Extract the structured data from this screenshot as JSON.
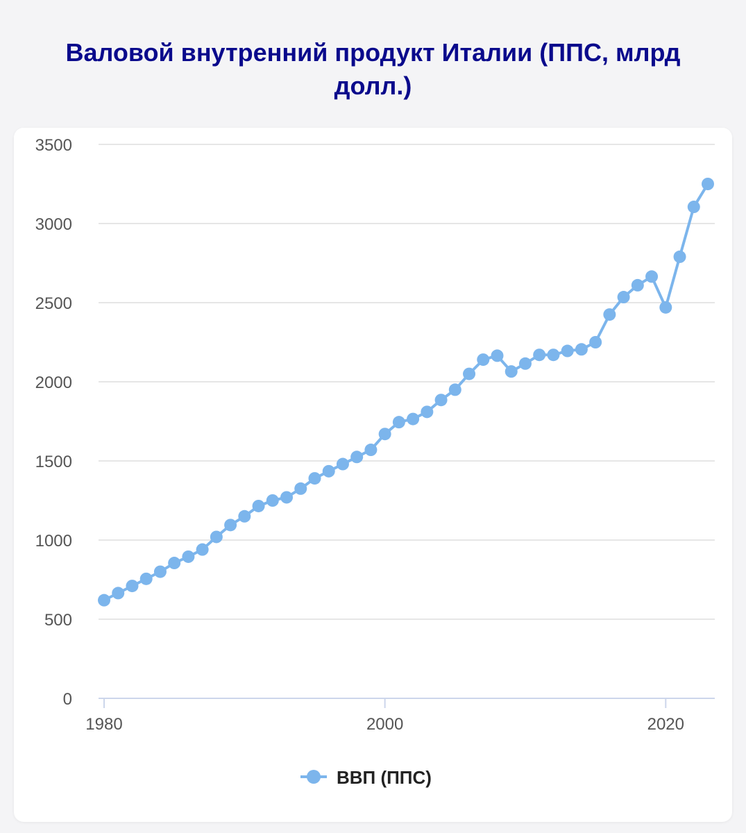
{
  "page": {
    "title_line1": "Валовой внутренний продукт Италии (ППС, млрд",
    "title_line2": "долл.)"
  },
  "colors": {
    "title": "#0a0a8c",
    "series": "#7cb5ec",
    "grid": "#e6e6e6",
    "axis": "#ccd6eb",
    "background": "#f4f4f6",
    "card": "#ffffff"
  },
  "chart_data": {
    "type": "line",
    "title": "Валовой внутренний продукт Италии (ППС, млрд долл.)",
    "xlabel": "",
    "ylabel": "",
    "ylim": [
      0,
      3500
    ],
    "xlim": [
      1980,
      2023
    ],
    "yticks": [
      "0",
      "500",
      "1000",
      "1500",
      "2000",
      "2500",
      "3000",
      "3500"
    ],
    "xticks": [
      "1980",
      "2000",
      "2020"
    ],
    "grid": true,
    "legend_position": "bottom-center",
    "series": [
      {
        "name": "ВВП (ППС)",
        "color": "#7cb5ec",
        "x": [
          1980,
          1981,
          1982,
          1983,
          1984,
          1985,
          1986,
          1987,
          1988,
          1989,
          1990,
          1991,
          1992,
          1993,
          1994,
          1995,
          1996,
          1997,
          1998,
          1999,
          2000,
          2001,
          2002,
          2003,
          2004,
          2005,
          2006,
          2007,
          2008,
          2009,
          2010,
          2011,
          2012,
          2013,
          2014,
          2015,
          2016,
          2017,
          2018,
          2019,
          2020,
          2021,
          2022,
          2023
        ],
        "values": [
          620,
          665,
          710,
          755,
          800,
          855,
          895,
          940,
          1020,
          1095,
          1150,
          1215,
          1250,
          1270,
          1325,
          1390,
          1435,
          1480,
          1525,
          1570,
          1670,
          1745,
          1765,
          1810,
          1885,
          1950,
          2050,
          2140,
          2165,
          2065,
          2115,
          2170,
          2170,
          2195,
          2205,
          2250,
          2425,
          2535,
          2610,
          2665,
          2470,
          2790,
          3105,
          3250
        ]
      }
    ]
  }
}
